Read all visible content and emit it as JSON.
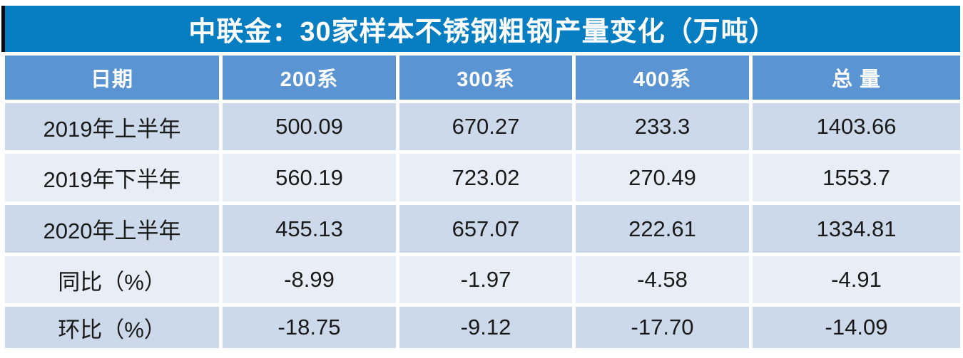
{
  "chart_data": {
    "type": "table",
    "title": "中联金：30家样本不锈钢粗钢产量变化（万吨）",
    "columns": [
      "日期",
      "200系",
      "300系",
      "400系",
      "总 量"
    ],
    "rows": [
      {
        "label": "2019年上半年",
        "values": [
          "500.09",
          "670.27",
          "233.3",
          "1403.66"
        ]
      },
      {
        "label": "2019年下半年",
        "values": [
          "560.19",
          "723.02",
          "270.49",
          "1553.7"
        ]
      },
      {
        "label": "2020年上半年",
        "values": [
          "455.13",
          "657.07",
          "222.61",
          "1334.81"
        ]
      },
      {
        "label": "同比（%）",
        "values": [
          "-8.99",
          "-1.97",
          "-4.58",
          "-4.91"
        ]
      },
      {
        "label": "环比（%）",
        "values": [
          "-18.75",
          "-9.12",
          "-17.70",
          "-14.09"
        ]
      }
    ],
    "units": "万吨",
    "source_label": "中联金",
    "sample_size_label": "30家样本"
  },
  "colors": {
    "title_bg": "#077ec1",
    "title_accent": "#0a0a0a",
    "header_bg": "#5b94d2",
    "row_odd_bg": "#ccd9ea",
    "row_even_bg": "#e9edf5",
    "header_text": "#ffffff",
    "data_text": "#1a1a1a"
  }
}
